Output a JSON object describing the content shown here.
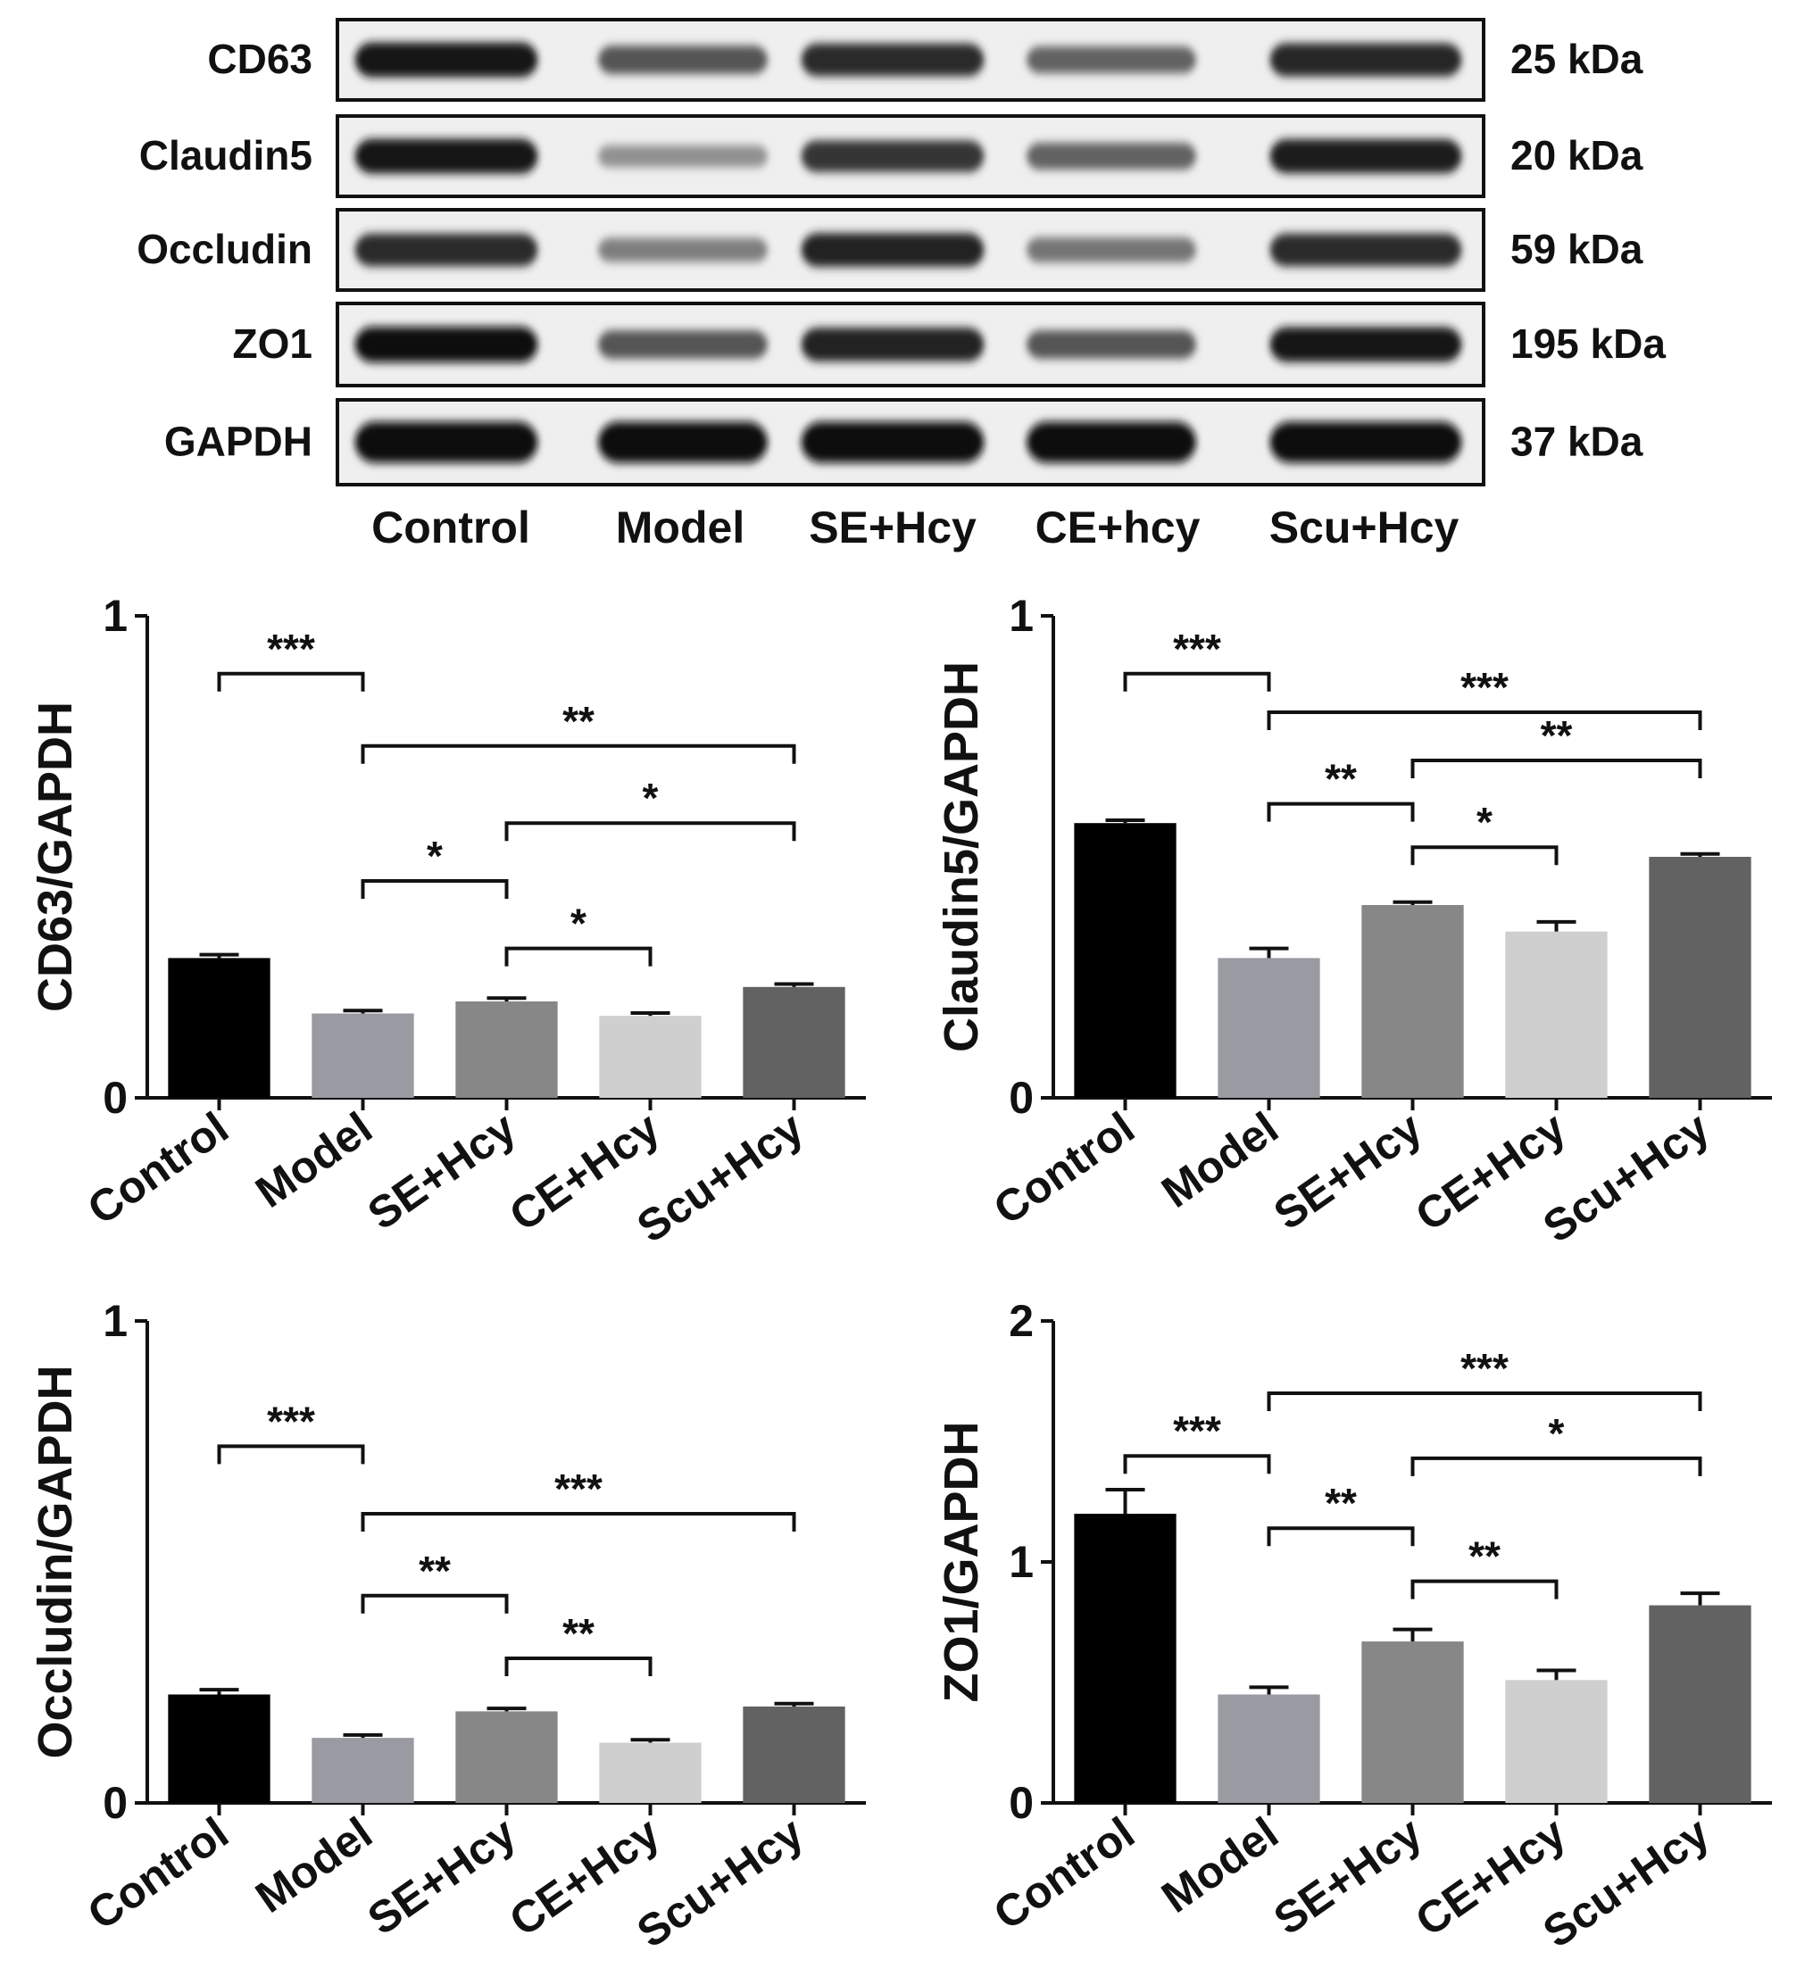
{
  "blot": {
    "groups": [
      "Control",
      "Model",
      "SE+Hcy",
      "CE+hcy",
      "Scu+Hcy"
    ],
    "rows": [
      {
        "protein": "CD63",
        "mw": "25 kDa",
        "intensity": [
          0.95,
          0.62,
          0.85,
          0.55,
          0.88
        ]
      },
      {
        "protein": "Claudin5",
        "mw": "20 kDa",
        "intensity": [
          0.95,
          0.3,
          0.8,
          0.55,
          0.92
        ]
      },
      {
        "protein": "Occludin",
        "mw": "59 kDa",
        "intensity": [
          0.85,
          0.4,
          0.9,
          0.45,
          0.85
        ]
      },
      {
        "protein": "ZO1",
        "mw": "195 kDa",
        "intensity": [
          1.0,
          0.62,
          0.9,
          0.62,
          0.95
        ]
      },
      {
        "protein": "GAPDH",
        "mw": "37 kDa",
        "intensity": [
          1.0,
          1.0,
          1.0,
          1.0,
          1.0
        ]
      }
    ]
  },
  "chart_data": [
    {
      "type": "bar",
      "ylabel": "CD63/GAPDH",
      "ylim": [
        0,
        1
      ],
      "yticks": [
        "0",
        "1"
      ],
      "categories": [
        "Control",
        "Model",
        "SE+Hcy",
        "CE+Hcy",
        "Scu+Hcy"
      ],
      "values": [
        0.29,
        0.175,
        0.2,
        0.17,
        0.23
      ],
      "errors": [
        0.007,
        0.006,
        0.007,
        0.006,
        0.006
      ],
      "colors": [
        "#000000",
        "#9a9aa2",
        "#878787",
        "#cfcfcf",
        "#626262"
      ],
      "significance": [
        {
          "from": 0,
          "to": 1,
          "label": "***",
          "level": 0.88
        },
        {
          "from": 1,
          "to": 4,
          "label": "**",
          "level": 0.73
        },
        {
          "from": 2,
          "to": 4,
          "label": "*",
          "level": 0.57
        },
        {
          "from": 1,
          "to": 2,
          "label": "*",
          "level": 0.45
        },
        {
          "from": 2,
          "to": 3,
          "label": "*",
          "level": 0.31
        }
      ]
    },
    {
      "type": "bar",
      "ylabel": "Claudin5/GAPDH",
      "ylim": [
        0,
        1
      ],
      "yticks": [
        "0",
        "1"
      ],
      "categories": [
        "Control",
        "Model",
        "SE+Hcy",
        "CE+Hcy",
        "Scu+Hcy"
      ],
      "values": [
        0.57,
        0.29,
        0.4,
        0.345,
        0.5
      ],
      "errors": [
        0.006,
        0.02,
        0.006,
        0.02,
        0.006
      ],
      "colors": [
        "#000000",
        "#9a9aa2",
        "#878787",
        "#cfcfcf",
        "#626262"
      ],
      "significance": [
        {
          "from": 0,
          "to": 1,
          "label": "***",
          "level": 0.88
        },
        {
          "from": 1,
          "to": 4,
          "label": "***",
          "level": 0.8
        },
        {
          "from": 2,
          "to": 4,
          "label": "**",
          "level": 0.7
        },
        {
          "from": 1,
          "to": 2,
          "label": "**",
          "level": 0.61
        },
        {
          "from": 2,
          "to": 3,
          "label": "*",
          "level": 0.52
        }
      ]
    },
    {
      "type": "bar",
      "ylabel": "Occludin/GAPDH",
      "ylim": [
        0,
        1
      ],
      "yticks": [
        "0",
        "1"
      ],
      "categories": [
        "Control",
        "Model",
        "SE+Hcy",
        "CE+Hcy",
        "Scu+Hcy"
      ],
      "values": [
        0.225,
        0.135,
        0.19,
        0.125,
        0.2
      ],
      "errors": [
        0.01,
        0.006,
        0.006,
        0.006,
        0.006
      ],
      "colors": [
        "#000000",
        "#9a9aa2",
        "#878787",
        "#cfcfcf",
        "#626262"
      ],
      "significance": [
        {
          "from": 0,
          "to": 1,
          "label": "***",
          "level": 0.74
        },
        {
          "from": 1,
          "to": 4,
          "label": "***",
          "level": 0.6
        },
        {
          "from": 1,
          "to": 2,
          "label": "**",
          "level": 0.43
        },
        {
          "from": 2,
          "to": 3,
          "label": "**",
          "level": 0.3
        }
      ]
    },
    {
      "type": "bar",
      "ylabel": "ZO1/GAPDH",
      "ylim": [
        0,
        2
      ],
      "yticks": [
        "0",
        "1",
        "2"
      ],
      "categories": [
        "Control",
        "Model",
        "SE+Hcy",
        "CE+Hcy",
        "Scu+Hcy"
      ],
      "values": [
        1.2,
        0.45,
        0.67,
        0.51,
        0.82
      ],
      "errors": [
        0.1,
        0.03,
        0.05,
        0.04,
        0.05
      ],
      "colors": [
        "#000000",
        "#9a9aa2",
        "#878787",
        "#cfcfcf",
        "#626262"
      ],
      "significance": [
        {
          "from": 0,
          "to": 1,
          "label": "***",
          "level": 1.44
        },
        {
          "from": 1,
          "to": 4,
          "label": "***",
          "level": 1.7
        },
        {
          "from": 2,
          "to": 4,
          "label": "*",
          "level": 1.43
        },
        {
          "from": 1,
          "to": 2,
          "label": "**",
          "level": 1.14
        },
        {
          "from": 2,
          "to": 3,
          "label": "**",
          "level": 0.92
        }
      ]
    }
  ]
}
